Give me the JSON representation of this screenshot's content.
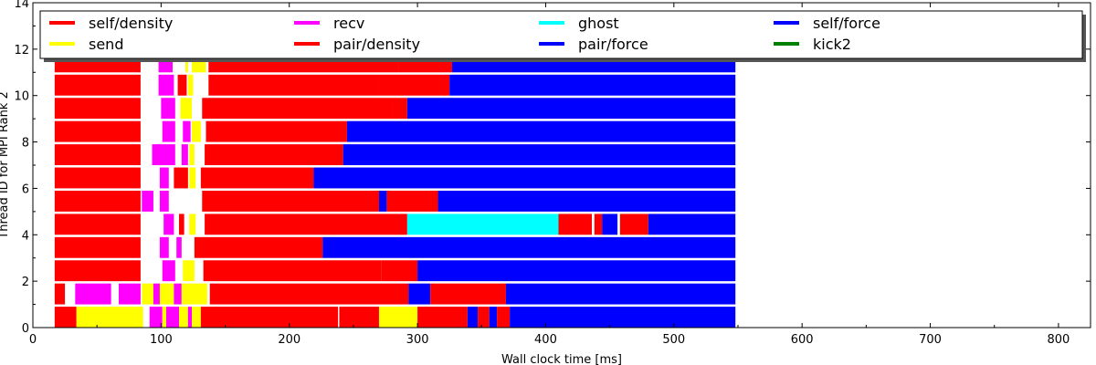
{
  "chart_data": {
    "type": "timeline",
    "xlabel": "Wall clock time [ms]",
    "ylabel": "Thread ID for MPI Rank 2",
    "xlim": [
      0,
      825
    ],
    "ylim": [
      0,
      14
    ],
    "xticks": [
      0,
      100,
      200,
      300,
      400,
      500,
      600,
      700,
      800
    ],
    "yticks": [
      0,
      2,
      4,
      6,
      8,
      10,
      12,
      14
    ],
    "legend_position": "top",
    "legend": [
      {
        "name": "self/density",
        "color": "#ff0000"
      },
      {
        "name": "send",
        "color": "#ffff00"
      },
      {
        "name": "recv",
        "color": "#ff00ff"
      },
      {
        "name": "pair/density",
        "color": "#ff0000"
      },
      {
        "name": "ghost",
        "color": "#00ffff"
      },
      {
        "name": "pair/force",
        "color": "#0000ff"
      },
      {
        "name": "self/force",
        "color": "#0000ff"
      },
      {
        "name": "kick2",
        "color": "#008000"
      }
    ],
    "threads": [
      {
        "thread": 0,
        "segments": [
          {
            "task": "self/density",
            "start": 17,
            "end": 34
          },
          {
            "task": "send",
            "start": 34,
            "end": 86
          },
          {
            "task": "recv",
            "start": 91,
            "end": 101
          },
          {
            "task": "send",
            "start": 101,
            "end": 104
          },
          {
            "task": "recv",
            "start": 104,
            "end": 114
          },
          {
            "task": "send",
            "start": 114,
            "end": 121
          },
          {
            "task": "recv",
            "start": 121,
            "end": 124
          },
          {
            "task": "send",
            "start": 124,
            "end": 131
          },
          {
            "task": "self/density",
            "start": 131,
            "end": 238
          },
          {
            "task": "pair/density",
            "start": 239,
            "end": 270
          },
          {
            "task": "send",
            "start": 270,
            "end": 300
          },
          {
            "task": "pair/density",
            "start": 300,
            "end": 339
          },
          {
            "task": "pair/force",
            "start": 339,
            "end": 347
          },
          {
            "task": "pair/density",
            "start": 347,
            "end": 356
          },
          {
            "task": "pair/force",
            "start": 356,
            "end": 362
          },
          {
            "task": "pair/density",
            "start": 362,
            "end": 372
          },
          {
            "task": "pair/force",
            "start": 372,
            "end": 548
          }
        ]
      },
      {
        "thread": 1,
        "segments": [
          {
            "task": "self/density",
            "start": 17,
            "end": 25
          },
          {
            "task": "recv",
            "start": 33,
            "end": 61
          },
          {
            "task": "recv",
            "start": 67,
            "end": 84
          },
          {
            "task": "send",
            "start": 85,
            "end": 94
          },
          {
            "task": "recv",
            "start": 94,
            "end": 99
          },
          {
            "task": "send",
            "start": 99,
            "end": 110
          },
          {
            "task": "recv",
            "start": 110,
            "end": 116
          },
          {
            "task": "send",
            "start": 116,
            "end": 136
          },
          {
            "task": "self/density",
            "start": 138,
            "end": 293
          },
          {
            "task": "pair/force",
            "start": 293,
            "end": 310
          },
          {
            "task": "pair/density",
            "start": 310,
            "end": 369
          },
          {
            "task": "pair/force",
            "start": 369,
            "end": 548
          }
        ]
      },
      {
        "thread": 2,
        "segments": [
          {
            "task": "self/density",
            "start": 17,
            "end": 84
          },
          {
            "task": "recv",
            "start": 101,
            "end": 111
          },
          {
            "task": "send",
            "start": 117,
            "end": 126
          },
          {
            "task": "self/density",
            "start": 133,
            "end": 272
          },
          {
            "task": "pair/density",
            "start": 272,
            "end": 300
          },
          {
            "task": "pair/force",
            "start": 300,
            "end": 548
          }
        ]
      },
      {
        "thread": 3,
        "segments": [
          {
            "task": "self/density",
            "start": 17,
            "end": 84
          },
          {
            "task": "recv",
            "start": 99,
            "end": 106
          },
          {
            "task": "recv",
            "start": 112,
            "end": 116
          },
          {
            "task": "self/density",
            "start": 126,
            "end": 226
          },
          {
            "task": "pair/force",
            "start": 226,
            "end": 548
          }
        ]
      },
      {
        "thread": 4,
        "segments": [
          {
            "task": "self/density",
            "start": 17,
            "end": 84
          },
          {
            "task": "recv",
            "start": 102,
            "end": 110
          },
          {
            "task": "self/density",
            "start": 114,
            "end": 118
          },
          {
            "task": "send",
            "start": 122,
            "end": 127
          },
          {
            "task": "pair/density",
            "start": 134,
            "end": 292
          },
          {
            "task": "ghost",
            "start": 292,
            "end": 410
          },
          {
            "task": "pair/density",
            "start": 410,
            "end": 436
          },
          {
            "task": "pair/density",
            "start": 438,
            "end": 444
          },
          {
            "task": "pair/force",
            "start": 444,
            "end": 456
          },
          {
            "task": "pair/density",
            "start": 458,
            "end": 480
          },
          {
            "task": "pair/force",
            "start": 480,
            "end": 548
          }
        ]
      },
      {
        "thread": 5,
        "segments": [
          {
            "task": "self/density",
            "start": 17,
            "end": 84
          },
          {
            "task": "recv",
            "start": 85,
            "end": 94
          },
          {
            "task": "recv",
            "start": 99,
            "end": 106
          },
          {
            "task": "self/density",
            "start": 132,
            "end": 270
          },
          {
            "task": "pair/force",
            "start": 270,
            "end": 276
          },
          {
            "task": "pair/density",
            "start": 276,
            "end": 316
          },
          {
            "task": "pair/force",
            "start": 316,
            "end": 548
          }
        ]
      },
      {
        "thread": 6,
        "segments": [
          {
            "task": "self/density",
            "start": 17,
            "end": 84
          },
          {
            "task": "recv",
            "start": 99,
            "end": 106
          },
          {
            "task": "pair/density",
            "start": 110,
            "end": 121
          },
          {
            "task": "send",
            "start": 122,
            "end": 127
          },
          {
            "task": "self/density",
            "start": 131,
            "end": 219
          },
          {
            "task": "pair/force",
            "start": 219,
            "end": 548
          }
        ]
      },
      {
        "thread": 7,
        "segments": [
          {
            "task": "self/density",
            "start": 17,
            "end": 84
          },
          {
            "task": "recv",
            "start": 93,
            "end": 111
          },
          {
            "task": "recv",
            "start": 116,
            "end": 121
          },
          {
            "task": "send",
            "start": 122,
            "end": 126
          },
          {
            "task": "self/density",
            "start": 134,
            "end": 242
          },
          {
            "task": "pair/force",
            "start": 242,
            "end": 548
          }
        ]
      },
      {
        "thread": 8,
        "segments": [
          {
            "task": "self/density",
            "start": 17,
            "end": 84
          },
          {
            "task": "recv",
            "start": 101,
            "end": 111
          },
          {
            "task": "recv",
            "start": 117,
            "end": 123
          },
          {
            "task": "send",
            "start": 124,
            "end": 131
          },
          {
            "task": "self/density",
            "start": 135,
            "end": 245
          },
          {
            "task": "pair/force",
            "start": 245,
            "end": 548
          }
        ]
      },
      {
        "thread": 9,
        "segments": [
          {
            "task": "self/density",
            "start": 17,
            "end": 84
          },
          {
            "task": "recv",
            "start": 100,
            "end": 111
          },
          {
            "task": "send",
            "start": 115,
            "end": 124
          },
          {
            "task": "self/density",
            "start": 132,
            "end": 280
          },
          {
            "task": "pair/density",
            "start": 280,
            "end": 292
          },
          {
            "task": "pair/force",
            "start": 292,
            "end": 548
          }
        ]
      },
      {
        "thread": 10,
        "segments": [
          {
            "task": "self/density",
            "start": 17,
            "end": 84
          },
          {
            "task": "recv",
            "start": 98,
            "end": 110
          },
          {
            "task": "pair/density",
            "start": 113,
            "end": 120
          },
          {
            "task": "send",
            "start": 121,
            "end": 125
          },
          {
            "task": "self/density",
            "start": 137,
            "end": 270
          },
          {
            "task": "pair/density",
            "start": 270,
            "end": 325
          },
          {
            "task": "pair/force",
            "start": 325,
            "end": 548
          }
        ]
      },
      {
        "thread": 11,
        "segments": [
          {
            "task": "self/density",
            "start": 17,
            "end": 84
          },
          {
            "task": "recv",
            "start": 98,
            "end": 109
          },
          {
            "task": "send",
            "start": 119,
            "end": 121
          },
          {
            "task": "send",
            "start": 124,
            "end": 135
          },
          {
            "task": "self/density",
            "start": 137,
            "end": 285
          },
          {
            "task": "pair/density",
            "start": 285,
            "end": 327
          },
          {
            "task": "pair/force",
            "start": 327,
            "end": 548
          }
        ]
      }
    ]
  }
}
